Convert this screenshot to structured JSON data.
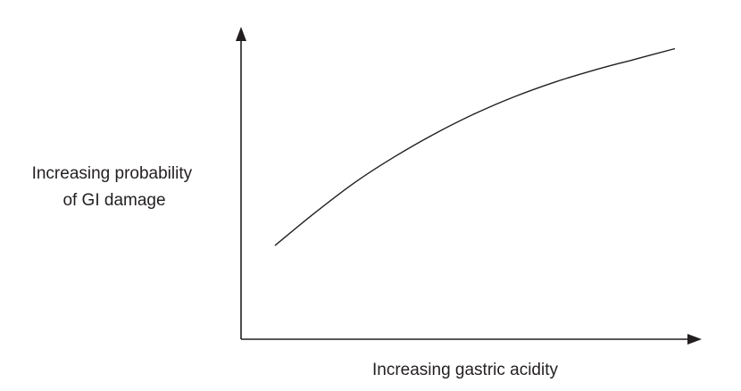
{
  "chart_data": {
    "type": "line",
    "title": "",
    "xlabel": "Increasing gastric acidity",
    "ylabel": [
      "Increasing probability",
      "of GI damage"
    ],
    "x_ticks": [],
    "y_ticks": [],
    "grid": false,
    "legend": "none",
    "xlim": [
      0,
      100
    ],
    "ylim": [
      0,
      100
    ],
    "series": [
      {
        "x": [
          0,
          10,
          20,
          30,
          40,
          50,
          60,
          70,
          80,
          90,
          100
        ],
        "y": [
          30,
          40.5,
          50.2,
          58.5,
          65.8,
          72.2,
          77.7,
          82.3,
          86.2,
          89.6,
          93
        ],
        "color": "#231f20"
      }
    ],
    "colors": {
      "axis": "#231f20",
      "text": "#231f20",
      "background": "#ffffff"
    }
  }
}
